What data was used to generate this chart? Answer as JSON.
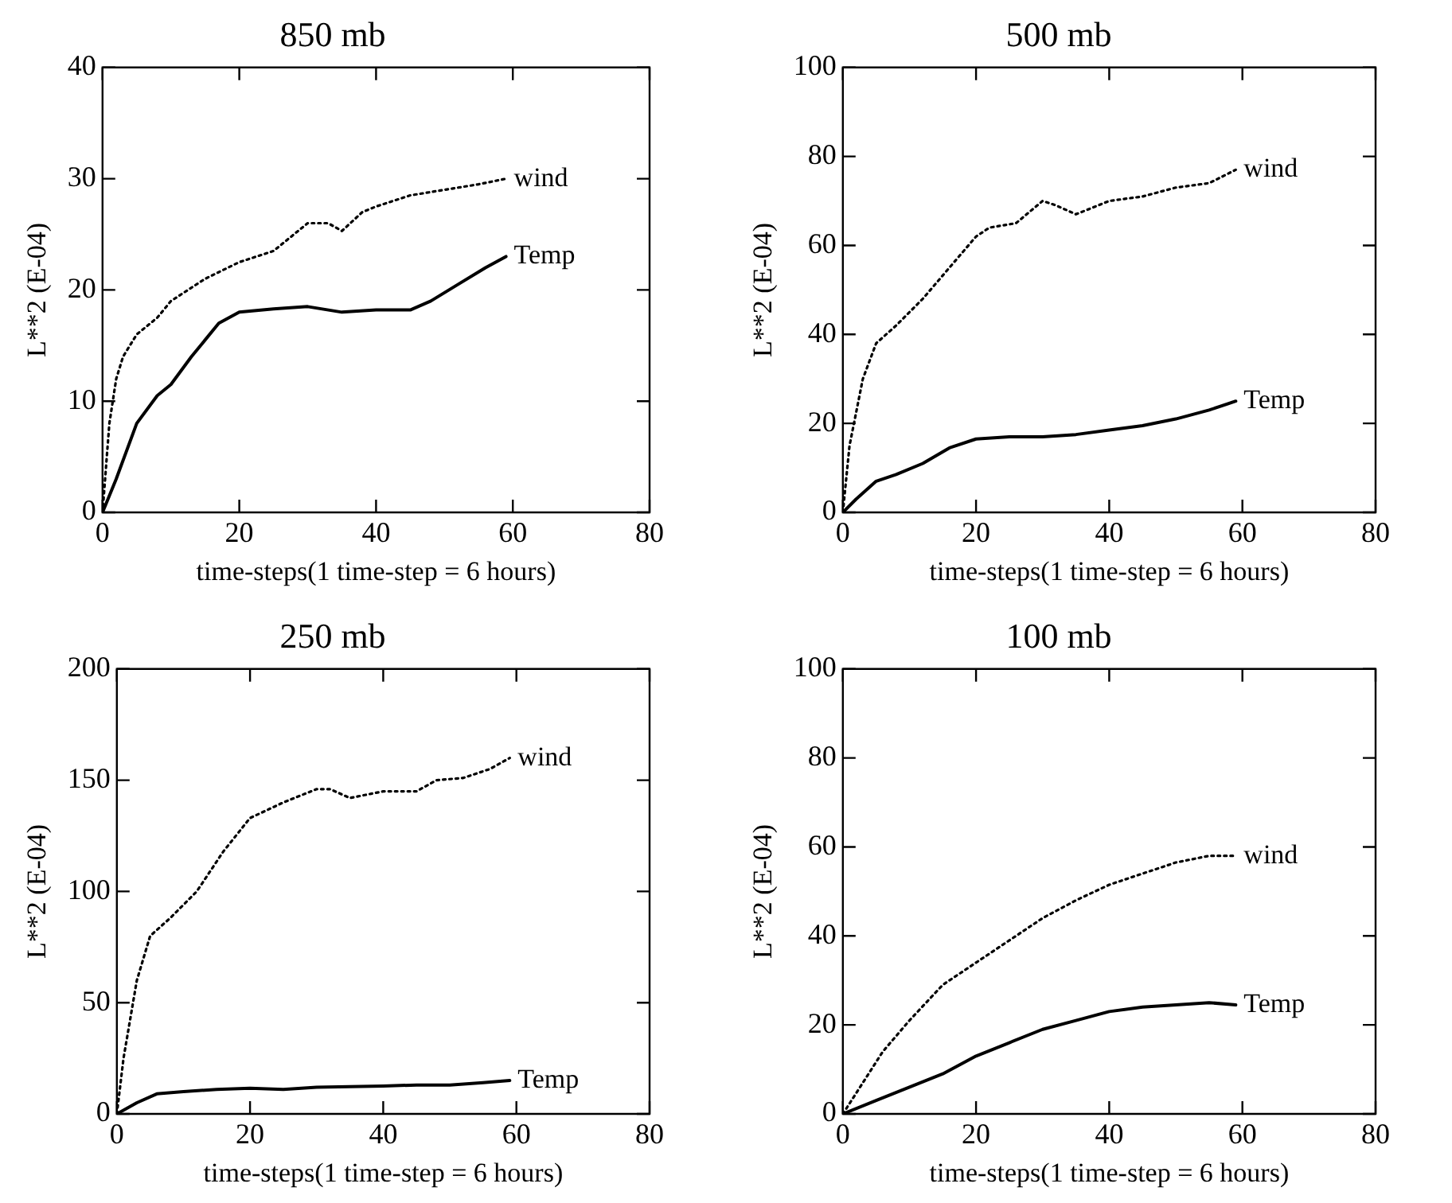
{
  "chart_data": [
    {
      "type": "line",
      "title": "850 mb",
      "xlabel": "time-steps(1 time-step = 6 hours)",
      "ylabel": "L**2 (E-04)",
      "xlim": [
        0,
        80
      ],
      "xticks": [
        0,
        20,
        40,
        60,
        80
      ],
      "ylim": [
        0,
        40
      ],
      "yticks": [
        0,
        10,
        20,
        30,
        40
      ],
      "grid": false,
      "legend": false,
      "marker": "none",
      "series": [
        {
          "name": "wind",
          "color": "#000000",
          "line_style": "dotted",
          "x": [
            0,
            1,
            2,
            3,
            5,
            8,
            10,
            15,
            20,
            25,
            30,
            33,
            35,
            38,
            40,
            45,
            50,
            55,
            59
          ],
          "values": [
            0,
            8,
            12,
            14,
            16,
            17.5,
            19,
            21,
            22.5,
            23.5,
            26,
            26,
            25.3,
            27,
            27.5,
            28.5,
            29,
            29.5,
            30
          ]
        },
        {
          "name": "Temp",
          "color": "#000000",
          "line_style": "solid",
          "x": [
            0,
            2,
            5,
            8,
            10,
            13,
            17,
            20,
            25,
            30,
            35,
            40,
            45,
            48,
            52,
            56,
            59
          ],
          "values": [
            0,
            3,
            8,
            10.5,
            11.5,
            14,
            17,
            18,
            18.3,
            18.5,
            18,
            18.2,
            18.2,
            19,
            20.5,
            22,
            23
          ]
        }
      ]
    },
    {
      "type": "line",
      "title": "500 mb",
      "xlabel": "time-steps(1 time-step = 6 hours)",
      "ylabel": "L**2 (E-04)",
      "xlim": [
        0,
        80
      ],
      "xticks": [
        0,
        20,
        40,
        60,
        80
      ],
      "ylim": [
        0,
        100
      ],
      "yticks": [
        0,
        20,
        40,
        60,
        80,
        100
      ],
      "grid": false,
      "legend": false,
      "marker": "none",
      "series": [
        {
          "name": "wind",
          "color": "#000000",
          "line_style": "dotted",
          "x": [
            0,
            1,
            3,
            5,
            8,
            12,
            16,
            20,
            22,
            26,
            30,
            32,
            35,
            40,
            45,
            50,
            55,
            59
          ],
          "values": [
            0,
            15,
            30,
            38,
            42,
            48,
            55,
            62,
            64,
            65,
            70,
            69,
            67,
            70,
            71,
            73,
            74,
            77
          ]
        },
        {
          "name": "Temp",
          "color": "#000000",
          "line_style": "solid",
          "x": [
            0,
            2,
            5,
            8,
            12,
            16,
            20,
            25,
            30,
            35,
            40,
            45,
            50,
            55,
            59
          ],
          "values": [
            0,
            3,
            7,
            8.5,
            11,
            14.5,
            16.5,
            17,
            17,
            17.5,
            18.5,
            19.5,
            21,
            23,
            25
          ]
        }
      ]
    },
    {
      "type": "line",
      "title": "250 mb",
      "xlabel": "time-steps(1 time-step = 6 hours)",
      "ylabel": "L**2 (E-04)",
      "xlim": [
        0,
        80
      ],
      "xticks": [
        0,
        20,
        40,
        60,
        80
      ],
      "ylim": [
        0,
        200
      ],
      "yticks": [
        0,
        50,
        100,
        150,
        200
      ],
      "grid": false,
      "legend": false,
      "marker": "none",
      "series": [
        {
          "name": "wind",
          "color": "#000000",
          "line_style": "dotted",
          "x": [
            0,
            1,
            3,
            5,
            8,
            12,
            16,
            20,
            25,
            30,
            32,
            35,
            40,
            45,
            48,
            52,
            56,
            59
          ],
          "values": [
            0,
            25,
            60,
            80,
            88,
            100,
            118,
            133,
            140,
            146,
            146,
            142,
            145,
            145,
            150,
            151,
            155,
            160
          ]
        },
        {
          "name": "Temp",
          "color": "#000000",
          "line_style": "solid",
          "x": [
            0,
            3,
            6,
            10,
            15,
            20,
            25,
            30,
            40,
            45,
            50,
            55,
            59
          ],
          "values": [
            0,
            5,
            9,
            10,
            11,
            11.5,
            11,
            12,
            12.5,
            13,
            13,
            14,
            15
          ]
        }
      ]
    },
    {
      "type": "line",
      "title": "100 mb",
      "xlabel": "time-steps(1 time-step = 6 hours)",
      "ylabel": "L**2 (E-04)",
      "xlim": [
        0,
        80
      ],
      "xticks": [
        0,
        20,
        40,
        60,
        80
      ],
      "ylim": [
        0,
        100
      ],
      "yticks": [
        0,
        20,
        40,
        60,
        80,
        100
      ],
      "grid": false,
      "legend": false,
      "marker": "none",
      "series": [
        {
          "name": "wind",
          "color": "#000000",
          "line_style": "dotted",
          "x": [
            0,
            3,
            6,
            10,
            15,
            20,
            25,
            30,
            35,
            40,
            45,
            50,
            55,
            59
          ],
          "values": [
            0,
            7,
            14,
            21,
            29,
            34,
            39,
            44,
            48,
            51.5,
            54,
            56.5,
            58,
            58
          ]
        },
        {
          "name": "Temp",
          "color": "#000000",
          "line_style": "solid",
          "x": [
            0,
            5,
            10,
            15,
            20,
            25,
            30,
            35,
            40,
            45,
            50,
            55,
            59
          ],
          "values": [
            0,
            3,
            6,
            9,
            13,
            16,
            19,
            21,
            23,
            24,
            24.5,
            25,
            24.5
          ]
        }
      ]
    }
  ]
}
